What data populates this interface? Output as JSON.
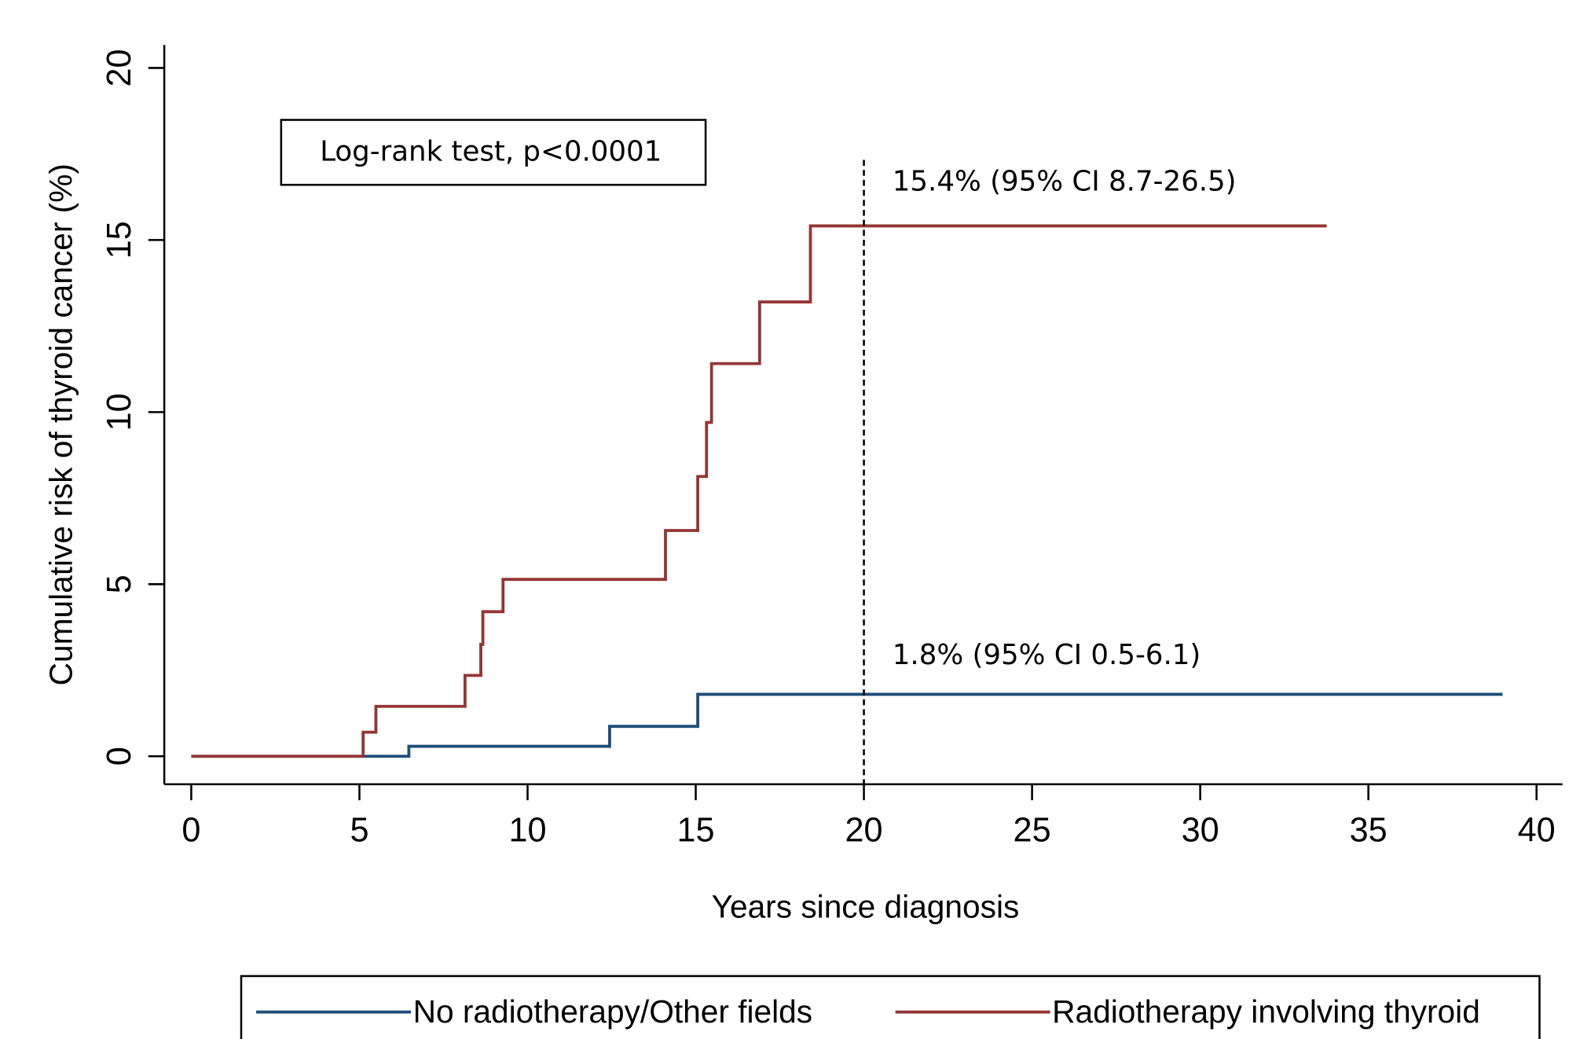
{
  "chart_data": {
    "type": "step",
    "xlabel": "Years since diagnosis",
    "ylabel": "Cumulative risk of thyroid cancer (%)",
    "xlim": [
      0,
      40
    ],
    "xticks": [
      0,
      5,
      10,
      15,
      20,
      25,
      30,
      35,
      40
    ],
    "ylim": [
      0,
      20
    ],
    "yticks": [
      0,
      5,
      10,
      15,
      20
    ],
    "series": [
      {
        "name": "No radiotherapy/Other fields",
        "color": "#1f4e79",
        "x": [
          0,
          6.47,
          12.44,
          15.06,
          38.99
        ],
        "values": [
          0,
          0.29,
          0.87,
          1.8,
          1.8
        ]
      },
      {
        "name": "Radiotherapy involving thyroid",
        "color": "#943634",
        "x": [
          0,
          5.11,
          5.49,
          8.14,
          8.61,
          8.67,
          9.27,
          14.1,
          15.06,
          15.32,
          15.47,
          16.9,
          18.41,
          33.76
        ],
        "values": [
          0,
          0.7,
          1.45,
          2.35,
          3.25,
          4.2,
          5.14,
          6.56,
          8.13,
          9.7,
          11.41,
          13.2,
          15.41,
          15.41
        ]
      }
    ],
    "vline": 20,
    "annotations": [
      "15.4% (95% CI 8.7-26.5)",
      "1.8% (95% CI 0.5-6.1)"
    ],
    "test_label": "Log-rank test, p<0.0001"
  }
}
